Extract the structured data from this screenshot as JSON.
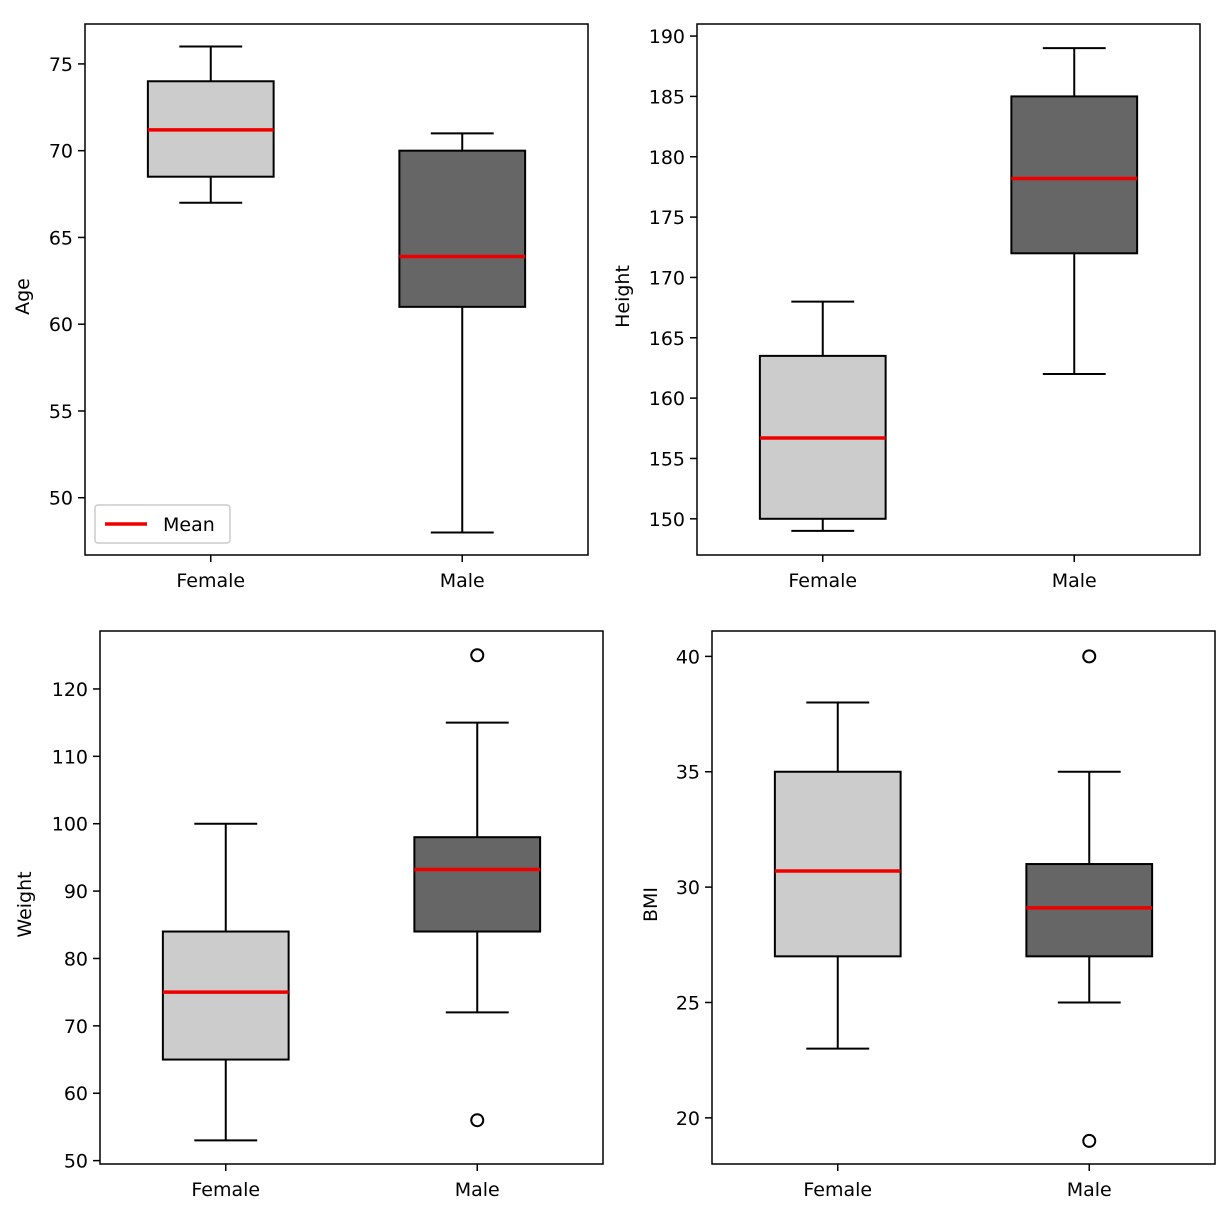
{
  "colors": {
    "female_box": "#cccccc",
    "male_box": "#666666",
    "mean_line": "#ee0000",
    "stroke": "#000000"
  },
  "legend": {
    "label": "Mean"
  },
  "chart_data": [
    {
      "type": "box",
      "ylabel": "Age",
      "categories": [
        "Female",
        "Male"
      ],
      "ylim": [
        46.7,
        77.3
      ],
      "yticks": [
        50,
        55,
        60,
        65,
        70,
        75
      ],
      "legend": "lower-left",
      "boxes": [
        {
          "category": "Female",
          "whisker_low": 67,
          "q1": 68.5,
          "q3": 74,
          "whisker_high": 76,
          "mean": 71.2,
          "outliers": []
        },
        {
          "category": "Male",
          "whisker_low": 48,
          "q1": 61,
          "q3": 70,
          "whisker_high": 71,
          "mean": 63.9,
          "outliers": []
        }
      ]
    },
    {
      "type": "box",
      "ylabel": "Height",
      "categories": [
        "Female",
        "Male"
      ],
      "ylim": [
        147.0,
        191.0
      ],
      "yticks": [
        150,
        155,
        160,
        165,
        170,
        175,
        180,
        185,
        190
      ],
      "boxes": [
        {
          "category": "Female",
          "whisker_low": 149,
          "q1": 150,
          "q3": 163.5,
          "whisker_high": 168,
          "mean": 156.7,
          "outliers": []
        },
        {
          "category": "Male",
          "whisker_low": 162,
          "q1": 172,
          "q3": 185,
          "whisker_high": 189,
          "mean": 178.2,
          "outliers": []
        }
      ]
    },
    {
      "type": "box",
      "ylabel": "Weight",
      "categories": [
        "Female",
        "Male"
      ],
      "ylim": [
        49.5,
        128.6
      ],
      "yticks": [
        50,
        60,
        70,
        80,
        90,
        100,
        110,
        120
      ],
      "boxes": [
        {
          "category": "Female",
          "whisker_low": 53,
          "q1": 65,
          "q3": 84,
          "whisker_high": 100,
          "mean": 75,
          "outliers": []
        },
        {
          "category": "Male",
          "whisker_low": 72,
          "q1": 84,
          "q3": 98,
          "whisker_high": 115,
          "mean": 93.2,
          "outliers": [
            56,
            125
          ]
        }
      ]
    },
    {
      "type": "box",
      "ylabel": "BMI",
      "categories": [
        "Female",
        "Male"
      ],
      "ylim": [
        18.0,
        41.1
      ],
      "yticks": [
        20,
        25,
        30,
        35,
        40
      ],
      "boxes": [
        {
          "category": "Female",
          "whisker_low": 23,
          "q1": 27,
          "q3": 35,
          "whisker_high": 38,
          "mean": 30.7,
          "outliers": []
        },
        {
          "category": "Male",
          "whisker_low": 25,
          "q1": 27,
          "q3": 31,
          "whisker_high": 35,
          "mean": 29.1,
          "outliers": [
            19,
            40
          ]
        }
      ]
    }
  ]
}
